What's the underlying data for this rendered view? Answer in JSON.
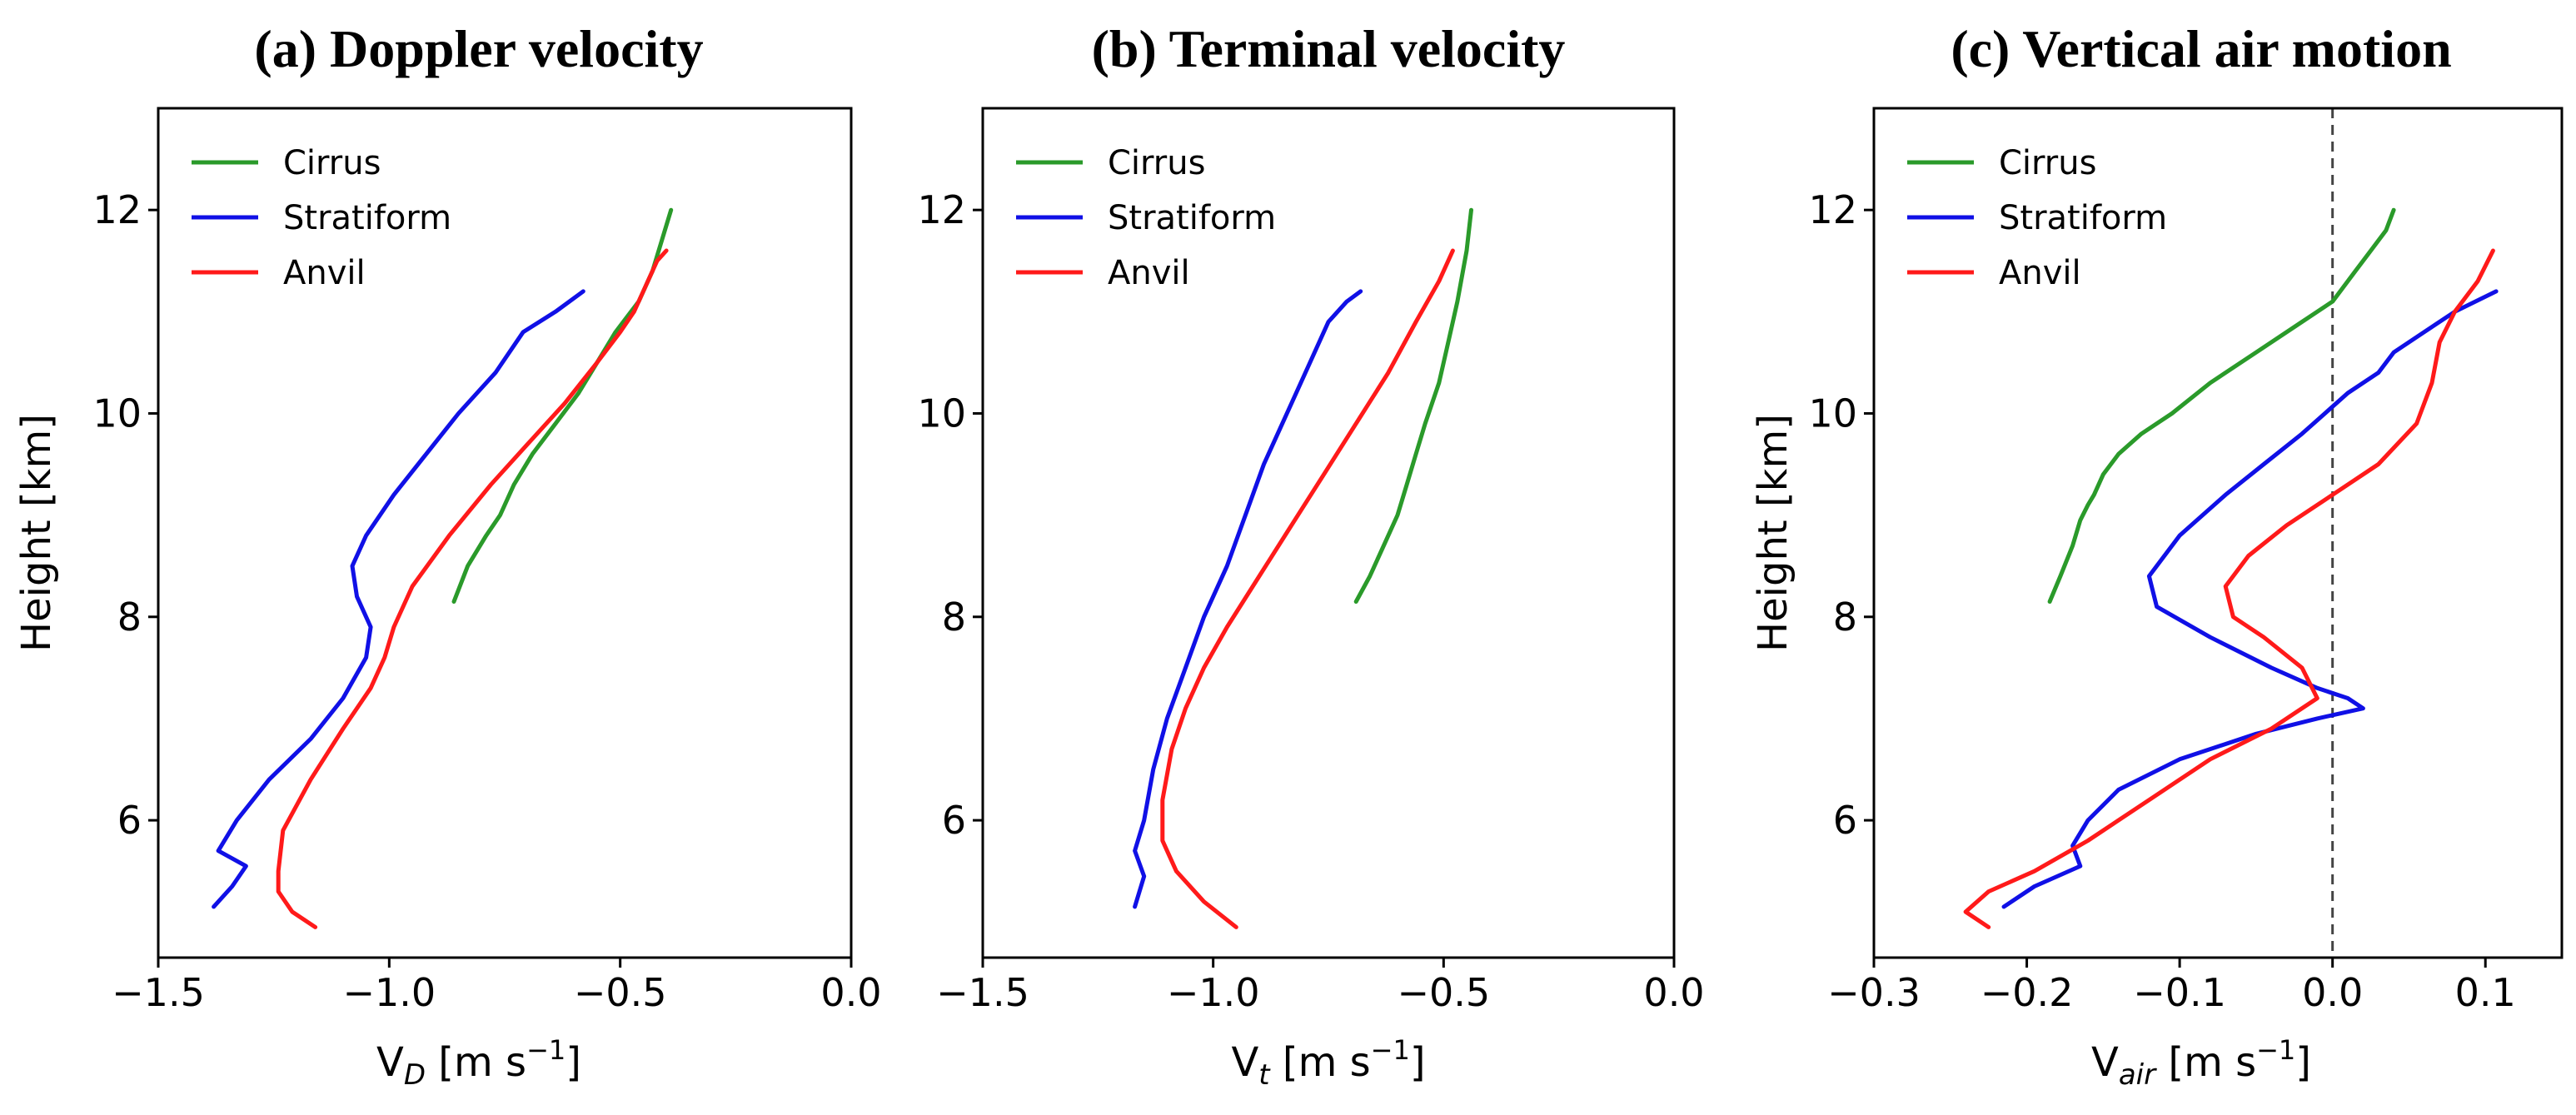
{
  "colors": {
    "Cirrus": "#2a9a2a",
    "Stratiform": "#1010e6",
    "Anvil": "#ff1a1a"
  },
  "chart_data": [
    {
      "type": "line",
      "title": "(a) Doppler velocity",
      "xlabel": "V",
      "xlabel_sub": "D",
      "xlabel_unit": " [m s",
      "xlabel_sup": "−1",
      "xlabel_close": "]",
      "ylabel": "Height [km]",
      "xlim": [
        -1.5,
        0.0
      ],
      "ylim": [
        4.65,
        13.0
      ],
      "xticks": [
        -1.5,
        -1.0,
        -0.5,
        0.0
      ],
      "xtick_labels": [
        "−1.5",
        "−1.0",
        "−0.5",
        "0.0"
      ],
      "yticks": [
        6,
        8,
        10,
        12
      ],
      "ytick_labels": [
        "6",
        "8",
        "10",
        "12"
      ],
      "legend": [
        "Cirrus",
        "Stratiform",
        "Anvil"
      ],
      "legend_loc": "upper-left",
      "vline": null,
      "series": [
        {
          "name": "Cirrus",
          "x": [
            -0.86,
            -0.83,
            -0.79,
            -0.76,
            -0.73,
            -0.69,
            -0.64,
            -0.59,
            -0.55,
            -0.51,
            -0.46,
            -0.43,
            -0.41,
            -0.39
          ],
          "y": [
            8.15,
            8.5,
            8.8,
            9.0,
            9.3,
            9.6,
            9.9,
            10.2,
            10.5,
            10.8,
            11.1,
            11.4,
            11.7,
            12.0
          ]
        },
        {
          "name": "Stratiform",
          "x": [
            -1.38,
            -1.34,
            -1.31,
            -1.37,
            -1.33,
            -1.26,
            -1.17,
            -1.1,
            -1.05,
            -1.04,
            -1.07,
            -1.08,
            -1.05,
            -0.99,
            -0.92,
            -0.85,
            -0.77,
            -0.71,
            -0.64,
            -0.58
          ],
          "y": [
            5.15,
            5.35,
            5.55,
            5.7,
            6.0,
            6.4,
            6.8,
            7.2,
            7.6,
            7.9,
            8.2,
            8.5,
            8.8,
            9.2,
            9.6,
            10.0,
            10.4,
            10.8,
            11.0,
            11.2
          ]
        },
        {
          "name": "Anvil",
          "x": [
            -1.16,
            -1.21,
            -1.24,
            -1.24,
            -1.23,
            -1.17,
            -1.1,
            -1.04,
            -1.01,
            -0.99,
            -0.95,
            -0.87,
            -0.78,
            -0.7,
            -0.62,
            -0.55,
            -0.5,
            -0.47,
            -0.45,
            -0.44,
            -0.42,
            -0.4
          ],
          "y": [
            4.95,
            5.1,
            5.3,
            5.5,
            5.9,
            6.4,
            6.9,
            7.3,
            7.6,
            7.9,
            8.3,
            8.8,
            9.3,
            9.7,
            10.1,
            10.5,
            10.8,
            11.0,
            11.2,
            11.3,
            11.5,
            11.6
          ]
        }
      ]
    },
    {
      "type": "line",
      "title": "(b) Terminal velocity",
      "xlabel": "V",
      "xlabel_sub": "t",
      "xlabel_unit": " [m s",
      "xlabel_sup": "−1",
      "xlabel_close": "]",
      "ylabel": "",
      "xlim": [
        -1.5,
        0.0
      ],
      "ylim": [
        4.65,
        13.0
      ],
      "xticks": [
        -1.5,
        -1.0,
        -0.5,
        0.0
      ],
      "xtick_labels": [
        "−1.5",
        "−1.0",
        "−0.5",
        "0.0"
      ],
      "yticks": [
        6,
        8,
        10,
        12
      ],
      "ytick_labels": [
        "6",
        "8",
        "10",
        "12"
      ],
      "legend": [
        "Cirrus",
        "Stratiform",
        "Anvil"
      ],
      "legend_loc": "upper-left",
      "vline": null,
      "series": [
        {
          "name": "Cirrus",
          "x": [
            -0.69,
            -0.66,
            -0.63,
            -0.6,
            -0.58,
            -0.56,
            -0.54,
            -0.51,
            -0.49,
            -0.47,
            -0.45,
            -0.44
          ],
          "y": [
            8.15,
            8.4,
            8.7,
            9.0,
            9.3,
            9.6,
            9.9,
            10.3,
            10.7,
            11.1,
            11.6,
            12.0
          ]
        },
        {
          "name": "Stratiform",
          "x": [
            -1.17,
            -1.15,
            -1.17,
            -1.15,
            -1.13,
            -1.1,
            -1.06,
            -1.02,
            -0.97,
            -0.93,
            -0.89,
            -0.84,
            -0.79,
            -0.75,
            -0.71,
            -0.68
          ],
          "y": [
            5.15,
            5.45,
            5.7,
            6.0,
            6.5,
            7.0,
            7.5,
            8.0,
            8.5,
            9.0,
            9.5,
            10.0,
            10.5,
            10.9,
            11.1,
            11.2
          ]
        },
        {
          "name": "Anvil",
          "x": [
            -0.95,
            -1.02,
            -1.08,
            -1.11,
            -1.11,
            -1.09,
            -1.06,
            -1.02,
            -0.97,
            -0.9,
            -0.83,
            -0.76,
            -0.69,
            -0.62,
            -0.56,
            -0.51,
            -0.48
          ],
          "y": [
            4.95,
            5.2,
            5.5,
            5.8,
            6.2,
            6.7,
            7.1,
            7.5,
            7.9,
            8.4,
            8.9,
            9.4,
            9.9,
            10.4,
            10.9,
            11.3,
            11.6
          ]
        }
      ]
    },
    {
      "type": "line",
      "title": "(c) Vertical air motion",
      "xlabel": "V",
      "xlabel_sub": "air",
      "xlabel_unit": " [m s",
      "xlabel_sup": "−1",
      "xlabel_close": "]",
      "ylabel": "Height [km]",
      "xlim": [
        -0.3,
        0.15
      ],
      "ylim": [
        4.65,
        13.0
      ],
      "xticks": [
        -0.3,
        -0.2,
        -0.1,
        0.0,
        0.1
      ],
      "xtick_labels": [
        "−0.3",
        "−0.2",
        "−0.1",
        "0.0",
        "0.1"
      ],
      "yticks": [
        6,
        8,
        10,
        12
      ],
      "ytick_labels": [
        "6",
        "8",
        "10",
        "12"
      ],
      "legend": [
        "Cirrus",
        "Stratiform",
        "Anvil"
      ],
      "legend_loc": "upper-left",
      "vline": 0.0,
      "series": [
        {
          "name": "Cirrus",
          "x": [
            -0.185,
            -0.178,
            -0.17,
            -0.165,
            -0.16,
            -0.156,
            -0.15,
            -0.14,
            -0.125,
            -0.105,
            -0.08,
            -0.05,
            -0.02,
            0.0,
            0.015,
            0.025,
            0.035,
            0.04
          ],
          "y": [
            8.15,
            8.4,
            8.7,
            8.95,
            9.1,
            9.2,
            9.4,
            9.6,
            9.8,
            10.0,
            10.3,
            10.6,
            10.9,
            11.1,
            11.4,
            11.6,
            11.8,
            12.0
          ]
        },
        {
          "name": "Stratiform",
          "x": [
            -0.215,
            -0.195,
            -0.165,
            -0.17,
            -0.16,
            -0.14,
            -0.1,
            -0.05,
            -0.01,
            0.02,
            0.01,
            -0.01,
            -0.04,
            -0.08,
            -0.115,
            -0.12,
            -0.1,
            -0.07,
            -0.045,
            -0.02,
            -0.005,
            0.01,
            0.03,
            0.04,
            0.06,
            0.08,
            0.107
          ],
          "y": [
            5.15,
            5.35,
            5.55,
            5.75,
            6.0,
            6.3,
            6.6,
            6.85,
            7.0,
            7.1,
            7.2,
            7.3,
            7.5,
            7.8,
            8.1,
            8.4,
            8.8,
            9.2,
            9.5,
            9.8,
            10.0,
            10.2,
            10.4,
            10.6,
            10.8,
            11.0,
            11.2
          ]
        },
        {
          "name": "Anvil",
          "x": [
            -0.225,
            -0.24,
            -0.225,
            -0.195,
            -0.16,
            -0.12,
            -0.08,
            -0.04,
            -0.01,
            -0.02,
            -0.045,
            -0.065,
            -0.07,
            -0.055,
            -0.03,
            0.0,
            0.03,
            0.055,
            0.065,
            0.07,
            0.08,
            0.095,
            0.105
          ],
          "y": [
            4.95,
            5.1,
            5.3,
            5.5,
            5.8,
            6.2,
            6.6,
            6.9,
            7.2,
            7.5,
            7.8,
            8.0,
            8.3,
            8.6,
            8.9,
            9.2,
            9.5,
            9.9,
            10.3,
            10.7,
            11.0,
            11.3,
            11.6
          ]
        }
      ]
    }
  ]
}
